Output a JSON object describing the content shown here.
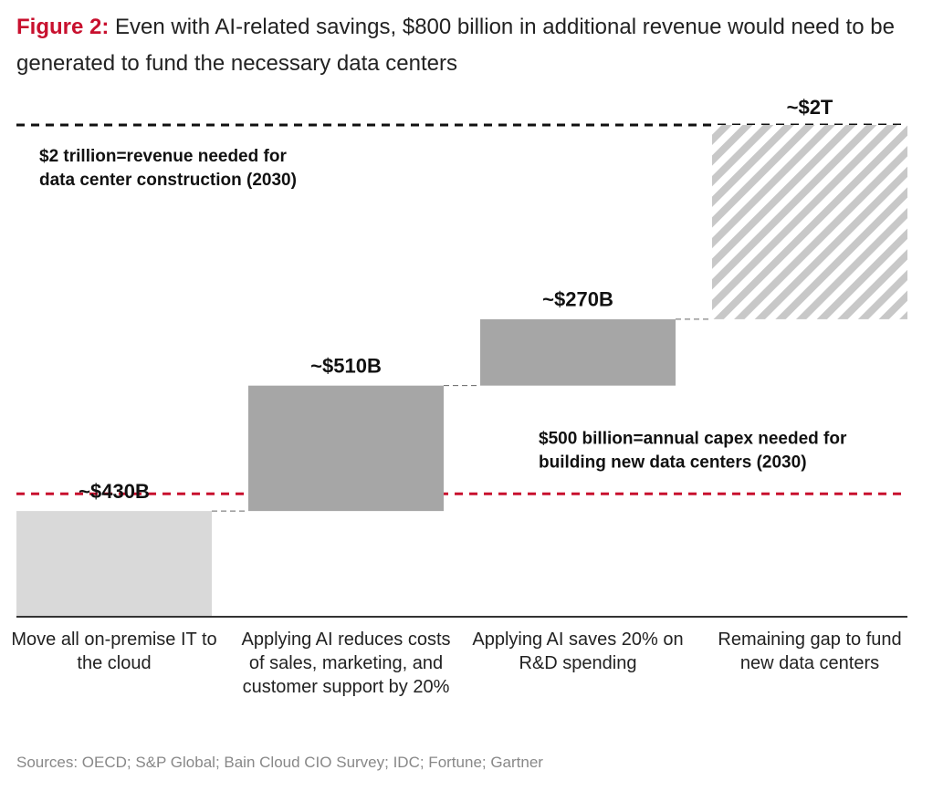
{
  "chart_data": {
    "type": "waterfall",
    "figure_label": "Figure 2:",
    "title": "Even with AI-related savings, $800 billion in additional revenue would need to be generated to fund the necessary data centers",
    "categories": [
      "Move all on-premise IT to the cloud",
      "Applying AI reduces costs of sales, marketing, and customer support by 20%",
      "Applying AI saves 20% on R&D spending",
      "Remaining gap to fund new data centers"
    ],
    "values": [
      430,
      510,
      270,
      790
    ],
    "value_labels": [
      "~$430B",
      "~$510B",
      "~$270B",
      null
    ],
    "colors": [
      "#d9d9d9",
      "#a6a6a6",
      "#a6a6a6",
      "#c8c8c8"
    ],
    "hatched": [
      false,
      false,
      false,
      true
    ],
    "ylim": [
      0,
      2000
    ],
    "reference_lines": [
      {
        "value": 2000,
        "color": "#111111",
        "value_label": "~$2T",
        "label": [
          "$2 trillion=revenue needed for",
          "data center construction (2030)"
        ]
      },
      {
        "value": 500,
        "color": "#c8102e",
        "label": [
          "$500 billion=annual capex needed for",
          "building new data centers (2030)"
        ]
      }
    ],
    "source": "Sources: OECD; S&P Global; Bain Cloud CIO Survey; IDC; Fortune; Gartner"
  }
}
